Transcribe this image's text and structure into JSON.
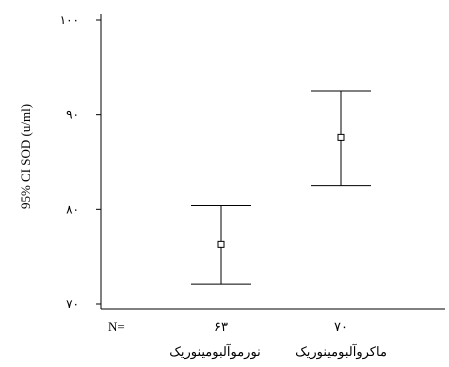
{
  "chart_data": {
    "type": "errorbar",
    "title": "",
    "xlabel": "",
    "ylabel": "95% CI SOD (u/ml)",
    "ylim": [
      70,
      100
    ],
    "yticks": [
      70,
      80,
      90,
      100
    ],
    "ytick_labels": [
      "۷۰",
      "۸۰",
      "۹۰",
      "۱۰۰"
    ],
    "n_prefix": "N=",
    "categories": [
      "نورموآلبومینوریک",
      "ماکروآلبومینوریک"
    ],
    "n_labels": [
      "۶۳",
      "۷۰"
    ],
    "series": [
      {
        "mean": 76.3,
        "lower": 72.1,
        "upper": 80.4
      },
      {
        "mean": 87.6,
        "lower": 82.5,
        "upper": 92.5
      }
    ],
    "grid": false
  }
}
